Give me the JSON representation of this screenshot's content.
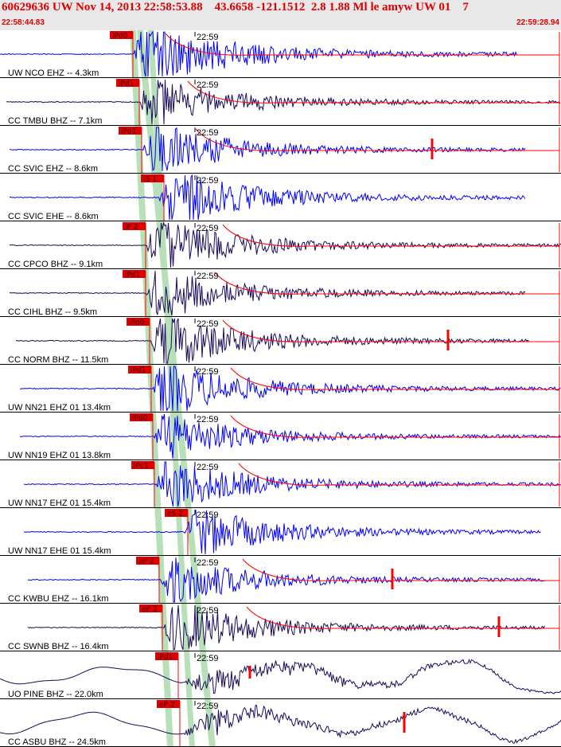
{
  "header": {
    "title": "60629636 UW Nov 14, 2013 22:58:53.88    43.6658 -121.1512  2.8 1.88 Ml le amyw UW 01    7",
    "start_time": "22:58:44.83",
    "end_time": "22:59:28.94"
  },
  "colors": {
    "vertical_trace": "#0000ff",
    "horizontal_trace": "#1a0a5a",
    "pick_marker": "#ff0000",
    "pick_label_bg": "#e00000",
    "arrival_band": "#b8e0b8",
    "header_text": "#e00000"
  },
  "traces": [
    {
      "label": "UW NCO EHZ -- 4.3km",
      "pick": "iPd0",
      "time_label": "22:59",
      "trace_type": "blue"
    },
    {
      "label": "CC TMBU BHZ -- 7.1km",
      "pick": "iPd1",
      "time_label": "22:59",
      "trace_type": "dark"
    },
    {
      "label": "CC SVIC EHZ -- 8.6km",
      "pick": "iPd1",
      "time_label": "22:59",
      "trace_type": "blue"
    },
    {
      "label": "CC SVIC EHE -- 8.6km",
      "pick": "iS 1",
      "time_label": "22:59",
      "trace_type": "blue"
    },
    {
      "label": "CC CPCO BHZ -- 9.1km",
      "pick": "iP 2",
      "time_label": "22:59",
      "trace_type": "dark"
    },
    {
      "label": "CC CIHL BHZ -- 9.5km",
      "pick": "iPd1",
      "time_label": "22:59",
      "trace_type": "dark"
    },
    {
      "label": "CC NORM BHZ -- 11.5km",
      "pick": "iPd0",
      "time_label": "22:59",
      "trace_type": "dark"
    },
    {
      "label": "UW NN21 EHZ 01 13.4km",
      "pick": "iPd1",
      "time_label": "22:59",
      "trace_type": "blue"
    },
    {
      "label": "UW NN19 EHZ 01 13.8km",
      "pick": "iPd0",
      "time_label": "22:59",
      "trace_type": "blue"
    },
    {
      "label": "UW NN17 EHZ 01 15.4km",
      "pick": "iPc1",
      "time_label": "22:59",
      "trace_type": "blue"
    },
    {
      "label": "UW NN17 EHE 01 15.4km",
      "pick": "eS 2",
      "time_label": "22:59",
      "trace_type": "blue"
    },
    {
      "label": "CC KWBU EHZ -- 16.1km",
      "pick": "eP 2",
      "time_label": "22:59",
      "trace_type": "blue"
    },
    {
      "label": "CC SWNB BHZ -- 16.4km",
      "pick": "eP 2",
      "time_label": "22:59",
      "trace_type": "dark"
    },
    {
      "label": "UO PINE BHZ -- 22.0km",
      "pick": "iPd1",
      "time_label": "22:59",
      "trace_type": "dark"
    },
    {
      "label": "CC ASBU BHZ -- 24.5km",
      "pick": "eP 2",
      "time_label": "22:59",
      "trace_type": "dark"
    }
  ]
}
